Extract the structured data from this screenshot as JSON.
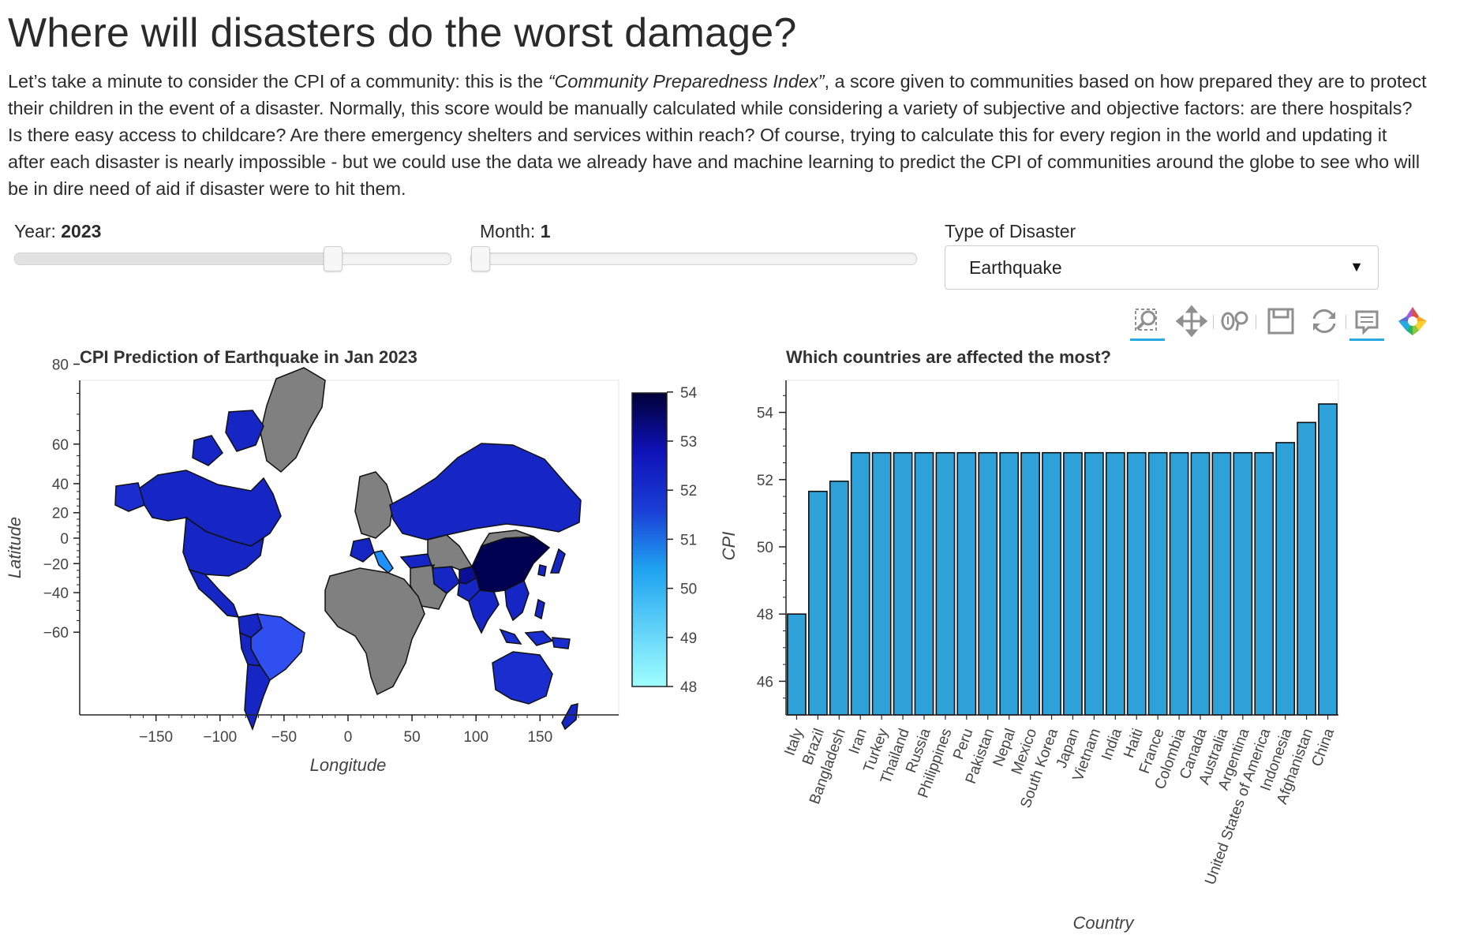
{
  "page": {
    "title": "Where will disasters do the worst damage?",
    "intro_before": "Let’s take a minute to consider the CPI of a community: this is the ",
    "intro_em": "“Community Preparedness Index”",
    "intro_after": ", a score given to communities based on how prepared they are to protect their children in the event of a disaster. Normally, this score would be manually calculated while considering a variety of subjective and objective factors: are there hospitals? Is there easy access to childcare? Are there emergency shelters and services within reach? Of course, trying to calculate this for every region in the world and updating it after each disaster is nearly impossible - but we could use the data we already have and machine learning to predict the CPI of communities around the globe to see who will be in dire need of aid if disaster were to hit them."
  },
  "controls": {
    "year": {
      "label": "Year: ",
      "value": "2023",
      "min": 2000,
      "max": 2030
    },
    "month": {
      "label": "Month: ",
      "value": "1",
      "min": 1,
      "max": 12
    },
    "disaster": {
      "label": "Type of Disaster",
      "value": "Earthquake"
    }
  },
  "toolbar": {
    "tools": [
      "box-zoom-icon",
      "pan-icon",
      "wheel-zoom-icon",
      "save-icon",
      "reset-icon",
      "hover-icon",
      "bokeh-logo-icon"
    ]
  },
  "chart_data": [
    {
      "type": "map",
      "title": "CPI Prediction of Earthquake in Jan 2023",
      "xlabel": "Longitude",
      "ylabel": "Latitude",
      "xticks": [
        -150,
        -100,
        -50,
        0,
        50,
        100,
        150
      ],
      "yticks": [
        80,
        60,
        40,
        20,
        0,
        -20,
        -40,
        -60
      ],
      "colorbar": {
        "min": 48,
        "max": 54,
        "ticks": [
          54,
          53,
          52,
          51,
          50,
          49,
          48
        ]
      },
      "no_data_color": "#808080",
      "colors": {
        "low": "#a0ffff",
        "mid": "#1a8cff",
        "high": "#000038"
      }
    },
    {
      "type": "bar",
      "title": "Which countries are affected the most?",
      "xlabel": "Country",
      "ylabel": "CPI",
      "ylim": [
        45,
        55
      ],
      "yticks": [
        46,
        48,
        50,
        52,
        54
      ],
      "bar_color": "#2ea1d9",
      "categories": [
        "Italy",
        "Brazil",
        "Bangladesh",
        "Iran",
        "Turkey",
        "Thailand",
        "Russia",
        "Philippines",
        "Peru",
        "Pakistan",
        "Nepal",
        "Mexico",
        "South Korea",
        "Japan",
        "Vietnam",
        "India",
        "Haiti",
        "France",
        "Colombia",
        "Canada",
        "Australia",
        "Argentina",
        "United States of America",
        "Indonesia",
        "Afghanistan",
        "China"
      ],
      "values": [
        48.0,
        51.65,
        51.95,
        52.8,
        52.8,
        52.8,
        52.8,
        52.8,
        52.8,
        52.8,
        52.8,
        52.8,
        52.8,
        52.8,
        52.8,
        52.8,
        52.8,
        52.8,
        52.8,
        52.8,
        52.8,
        52.8,
        52.8,
        53.1,
        53.7,
        54.25
      ]
    }
  ]
}
